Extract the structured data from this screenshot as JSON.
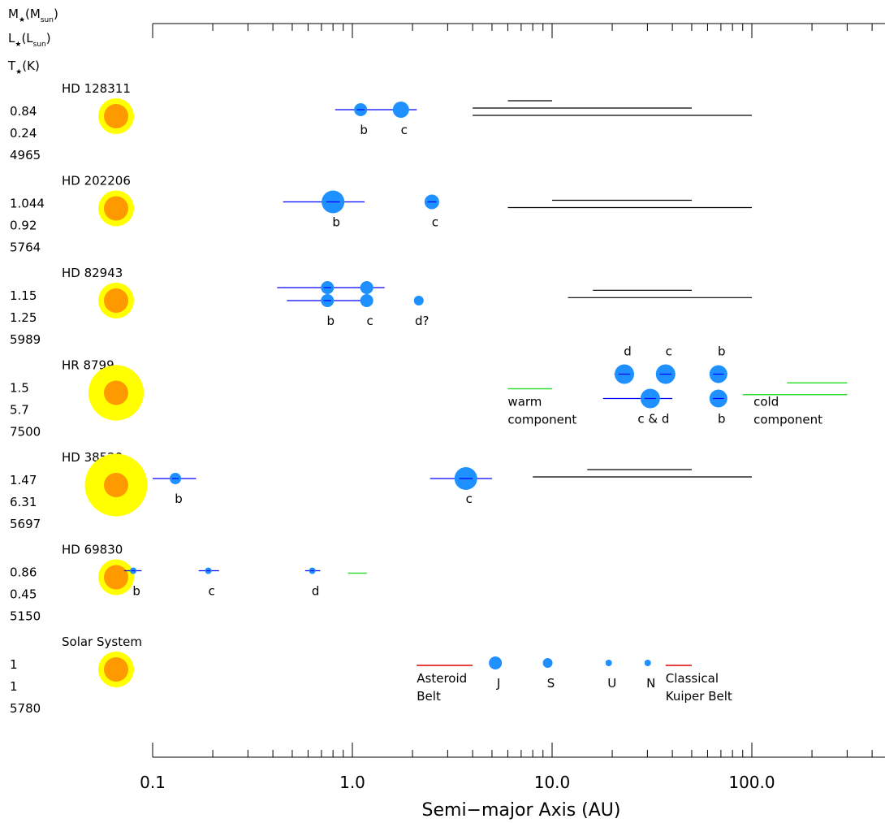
{
  "chart_data": {
    "type": "scatter",
    "title": "",
    "xlabel": "Semi−major Axis (AU)",
    "xscale": "log",
    "xlim": [
      0.1,
      450
    ],
    "x_tick_labels": [
      "0.1",
      "1.0",
      "10.0",
      "100.0"
    ],
    "grid": false,
    "header_labels": [
      "M★(Msun)",
      "L★(Lsun)",
      "T★(K)"
    ],
    "colors": {
      "planet": "#1e90ff",
      "error_bar": "#0000ff",
      "warm_component": "#33dd33",
      "asteroid_belt": "#dd0000",
      "star_outer": "#ffff00",
      "star_inner": "#ff9900",
      "debris_range": "#000000"
    },
    "systems": [
      {
        "name": "HD 128311",
        "mass": "0.84",
        "luminosity": "0.24",
        "temperature": "4965",
        "star_outer": 1.0,
        "planets": [
          {
            "label": "b",
            "a": 1.1,
            "size": 8,
            "err": [
              0.82,
              2.1
            ]
          },
          {
            "label": "c",
            "a": 1.75,
            "size": 10,
            "err": null
          }
        ],
        "debris_ranges": [
          [
            6,
            10,
            0
          ],
          [
            4,
            50,
            1
          ],
          [
            4,
            100,
            2
          ]
        ],
        "belts": [],
        "text_labels": []
      },
      {
        "name": "HD 202206",
        "mass": "1.044",
        "luminosity": "0.92",
        "temperature": "5764",
        "star_outer": 1.0,
        "planets": [
          {
            "label": "b",
            "a": 0.8,
            "size": 14,
            "err": [
              0.45,
              1.15
            ]
          },
          {
            "label": "c",
            "a": 2.5,
            "size": 9,
            "err": [
              2.4,
              2.6
            ]
          }
        ],
        "debris_ranges": [
          [
            10,
            50,
            1
          ],
          [
            6,
            100,
            2
          ]
        ],
        "belts": [],
        "text_labels": []
      },
      {
        "name": "HD 82943",
        "mass": "1.15",
        "luminosity": "1.25",
        "temperature": "5989",
        "star_outer": 1.0,
        "planets": [
          {
            "label": "",
            "a": 0.75,
            "size": 8,
            "err": [
              0.42,
              1.45
            ],
            "row": -1
          },
          {
            "label": "",
            "a": 1.18,
            "size": 8,
            "err": null,
            "row": -1
          },
          {
            "label": "b",
            "a": 0.75,
            "size": 8,
            "err": [
              0.47,
              1.25
            ],
            "row": 1
          },
          {
            "label": "c",
            "a": 1.18,
            "size": 8,
            "err": null,
            "row": 1
          },
          {
            "label": "d?",
            "a": 2.15,
            "size": 6,
            "err": null,
            "row": 1
          }
        ],
        "debris_ranges": [
          [
            16,
            50,
            0.7
          ],
          [
            12,
            100,
            1.7
          ]
        ],
        "belts": [],
        "text_labels": []
      },
      {
        "name": "HR 8799",
        "mass": "1.5",
        "luminosity": "5.7",
        "temperature": "7500",
        "star_outer": 1.55,
        "planets": [
          {
            "label": "d",
            "a": 23,
            "size": 12,
            "err": [
              20.5,
              25.5
            ],
            "row": -1,
            "label_pos": "above"
          },
          {
            "label": "c",
            "a": 37,
            "size": 12,
            "err": [
              35.5,
              38.5
            ],
            "row": -1,
            "label_pos": "above"
          },
          {
            "label": "b",
            "a": 68,
            "size": 11,
            "err": [
              66,
              70
            ],
            "row": -1,
            "label_pos": "above"
          },
          {
            "label": "c & d",
            "a": 31,
            "size": 12,
            "err": [
              18,
              40
            ],
            "row": 1
          },
          {
            "label": "b",
            "a": 68,
            "size": 11,
            "err": [
              66,
              70
            ],
            "row": 1
          }
        ],
        "debris_ranges": [],
        "belts": [
          {
            "range": [
              6,
              10
            ],
            "color": "green",
            "row": 0
          },
          {
            "range": [
              150,
              300
            ],
            "color": "green",
            "row": -0.4
          },
          {
            "range": [
              90,
              300
            ],
            "color": "green",
            "row": 0.4
          }
        ],
        "text_labels": [
          {
            "lines": [
              "warm",
              "component"
            ],
            "x": 6.0
          },
          {
            "lines": [
              "cold",
              "component"
            ],
            "x": 102
          }
        ]
      },
      {
        "name": "HD 38529",
        "mass": "1.47",
        "luminosity": "6.31",
        "temperature": "5697",
        "star_outer": 1.75,
        "planets": [
          {
            "label": "b",
            "a": 0.13,
            "size": 7,
            "err": [
              0.1,
              0.165
            ]
          },
          {
            "label": "c",
            "a": 3.7,
            "size": 14,
            "err": [
              2.45,
              5.0
            ]
          }
        ],
        "debris_ranges": [
          [
            15,
            50,
            0
          ],
          [
            8,
            100,
            1
          ]
        ],
        "belts": [],
        "text_labels": []
      },
      {
        "name": "HD 69830",
        "mass": "0.86",
        "luminosity": "0.45",
        "temperature": "5150",
        "star_outer": 1.0,
        "planets": [
          {
            "label": "b",
            "a": 0.08,
            "size": 4,
            "err": [
              0.072,
              0.088
            ]
          },
          {
            "label": "c",
            "a": 0.19,
            "size": 4,
            "err": [
              0.17,
              0.215
            ]
          },
          {
            "label": "d",
            "a": 0.63,
            "size": 4,
            "err": [
              0.58,
              0.69
            ]
          }
        ],
        "debris_ranges": [],
        "belts": [
          {
            "range": [
              0.95,
              1.18
            ],
            "color": "green",
            "row": 0
          }
        ],
        "text_labels": []
      },
      {
        "name": "Solar System",
        "mass": "1",
        "luminosity": "1",
        "temperature": "5780",
        "star_outer": 1.0,
        "planets": [
          {
            "label": "J",
            "a": 5.2,
            "size": 8,
            "err": null
          },
          {
            "label": "S",
            "a": 9.5,
            "size": 6,
            "err": null
          },
          {
            "label": "U",
            "a": 19.2,
            "size": 4,
            "err": null
          },
          {
            "label": "N",
            "a": 30.1,
            "size": 4,
            "err": null
          }
        ],
        "debris_ranges": [],
        "belts": [
          {
            "range": [
              2.1,
              4.0
            ],
            "color": "red",
            "row": 0
          },
          {
            "range": [
              37,
              50
            ],
            "color": "red",
            "row": 0
          }
        ],
        "text_labels": [
          {
            "lines": [
              "Asteroid",
              "Belt"
            ],
            "x": 2.1
          },
          {
            "lines": [
              "Classical",
              "Kuiper Belt"
            ],
            "x": 37
          }
        ]
      }
    ]
  }
}
